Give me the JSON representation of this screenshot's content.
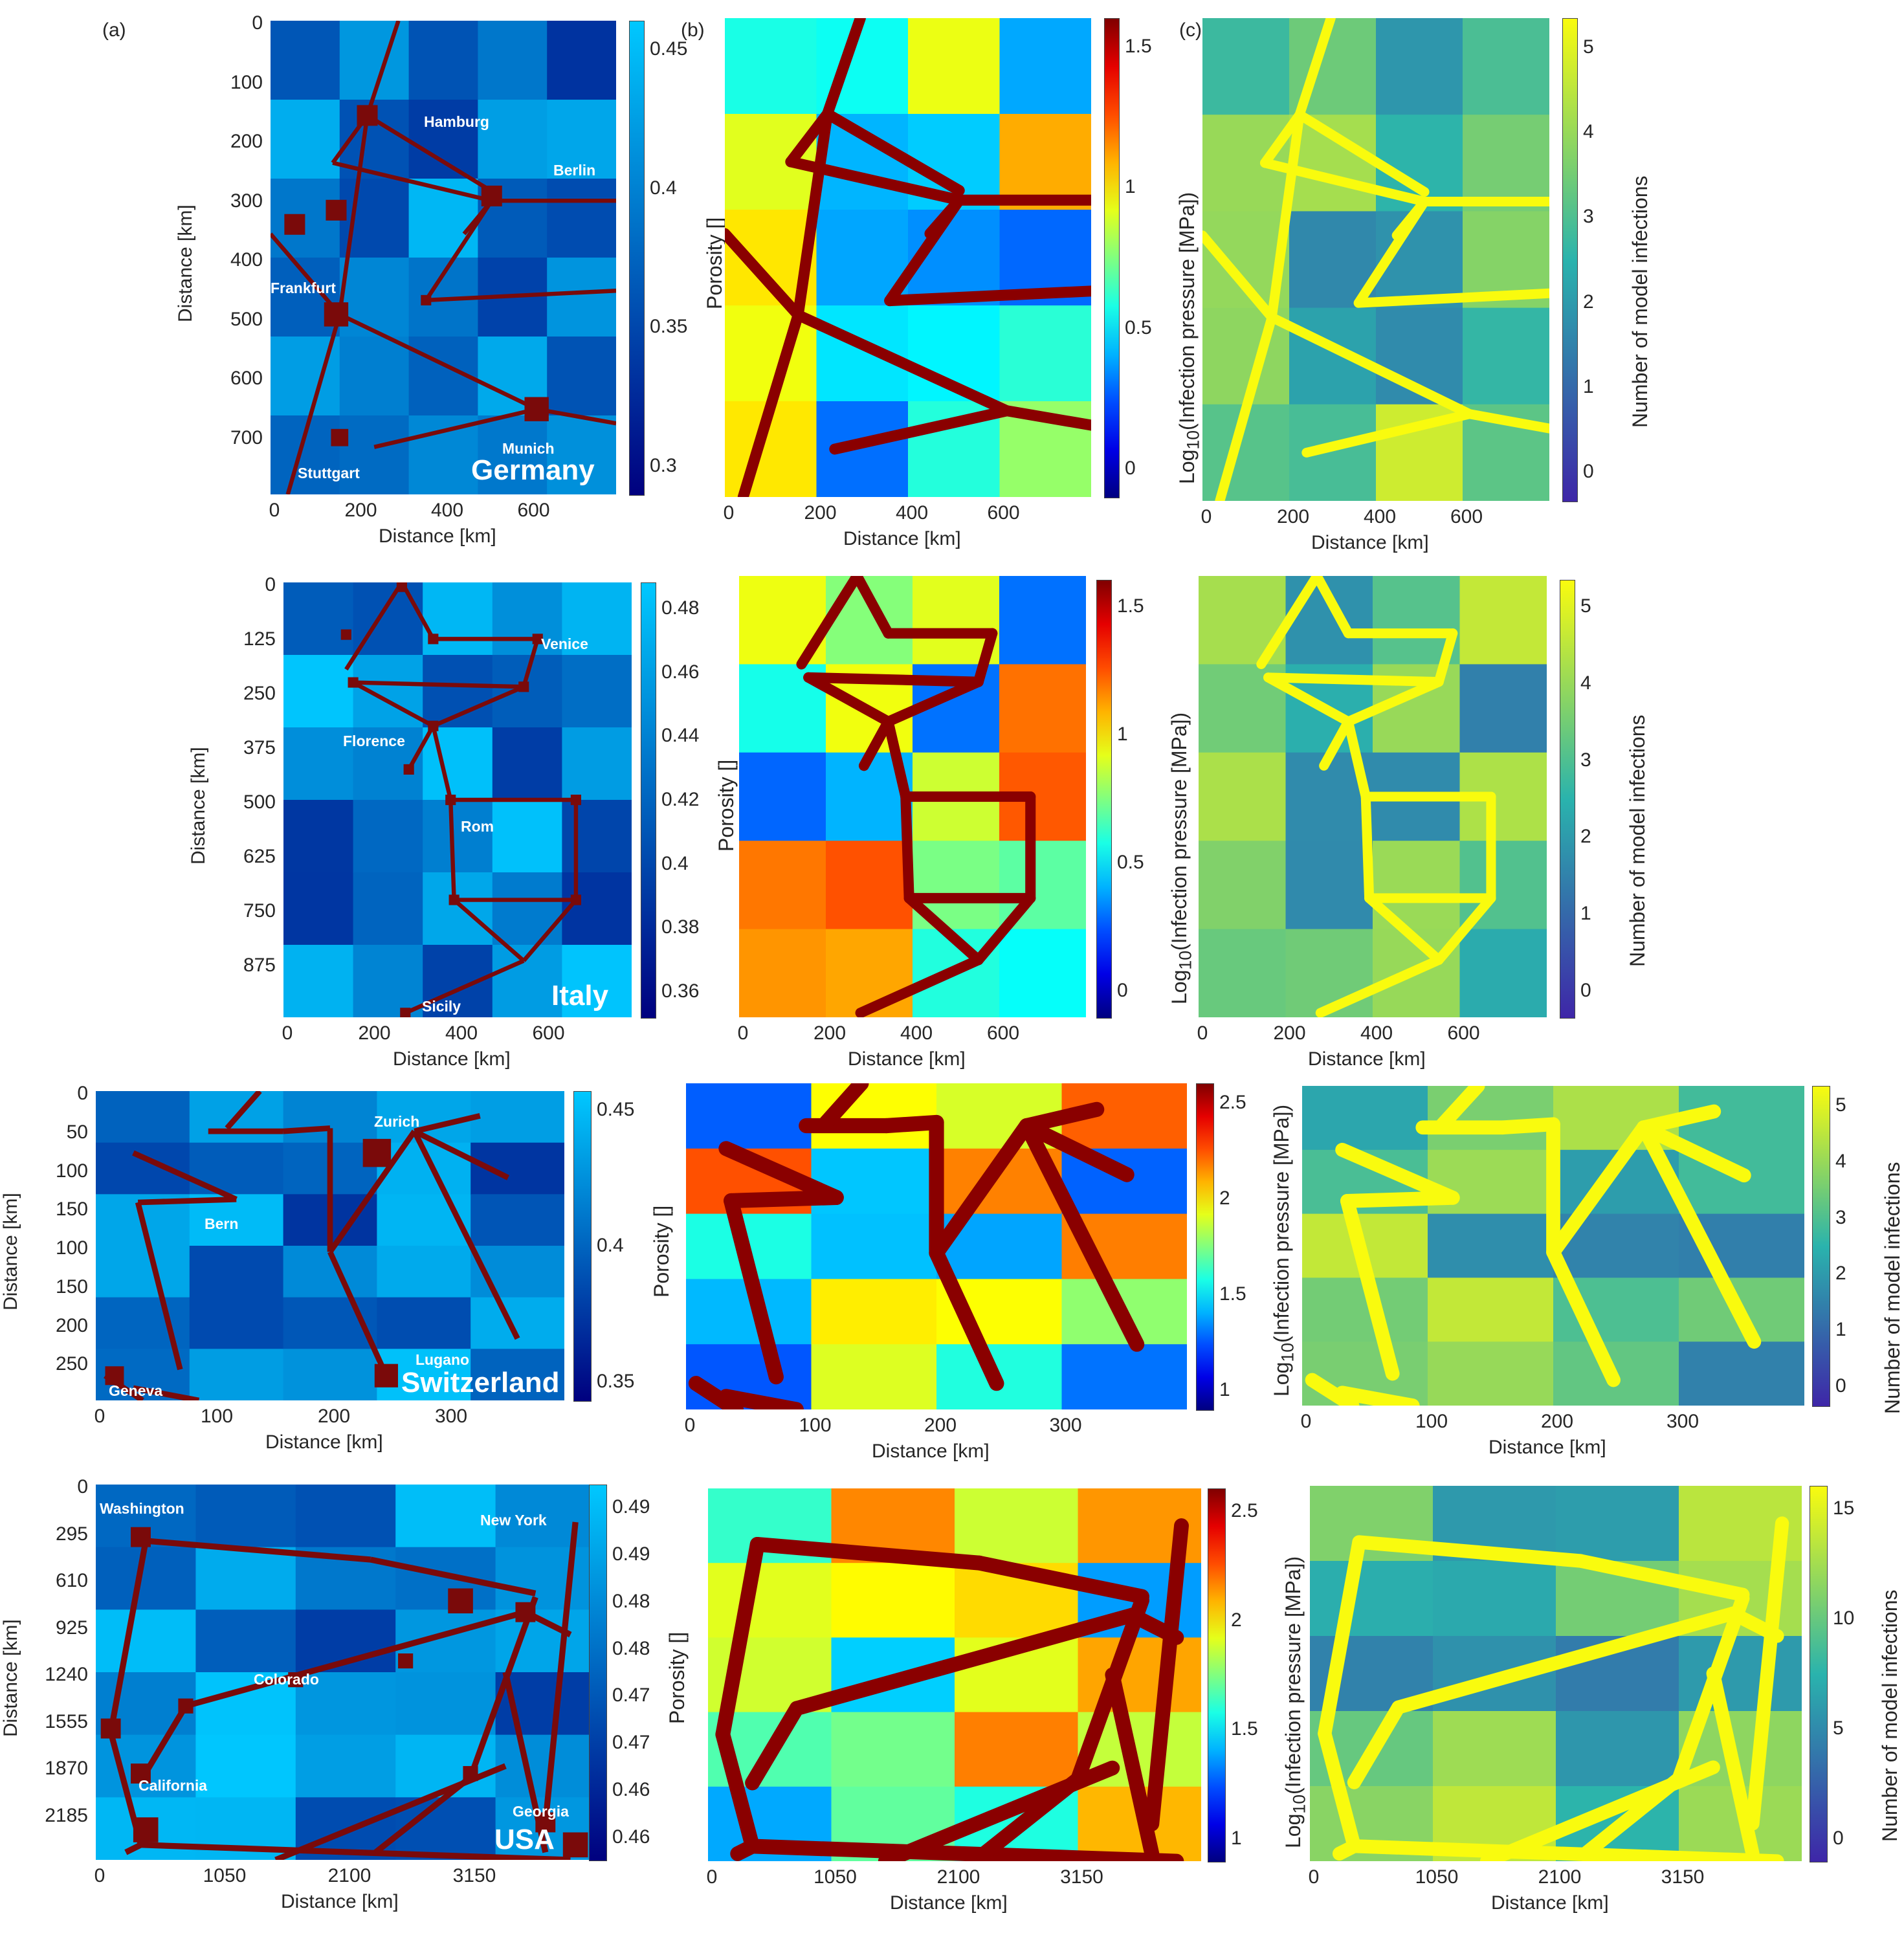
{
  "panel_labels": {
    "a": "(a)",
    "b": "(b)",
    "c": "(c)"
  },
  "labels": {
    "distance": "Distance [km]",
    "porosity": "Porosity []",
    "log_prefix": "Log",
    "log_sub": "10",
    "log_suffix": "(Infection pressure [MPa])",
    "infections": "Number of model infections"
  },
  "colors": {
    "porosity_low": "#00007f",
    "porosity_high": "#00c8ff",
    "road": "#7a0a0a",
    "parula_low": "#3e26a8",
    "parula_mid": "#2ab3ad",
    "parula_high": "#f9fb0e"
  },
  "rows": [
    {
      "country": "Germany",
      "cities": [
        "Hamburg",
        "Berlin",
        "Frankfurt",
        "Stuttgart",
        "Munich"
      ],
      "a_xticks": [
        "0",
        "200",
        "400",
        "600"
      ],
      "a_yticks": [
        "0",
        "100",
        "200",
        "300",
        "400",
        "500",
        "600",
        "700"
      ],
      "a_cbar": [
        "0.45",
        "0.4",
        "0.35",
        "0.3"
      ],
      "b_xticks": [
        "0",
        "200",
        "400",
        "600"
      ],
      "b_cbar": [
        "1.5",
        "1",
        "0.5",
        "0"
      ],
      "c_xticks": [
        "0",
        "200",
        "400",
        "600"
      ],
      "c_cbar": [
        "5",
        "4",
        "3",
        "2",
        "1",
        "0"
      ]
    },
    {
      "country": "Italy",
      "cities": [
        "Venice",
        "Florence",
        "Rom",
        "Sicily"
      ],
      "a_xticks": [
        "0",
        "200",
        "400",
        "600"
      ],
      "a_yticks": [
        "0",
        "125",
        "250",
        "375",
        "500",
        "625",
        "750",
        "875"
      ],
      "a_cbar": [
        "0.48",
        "0.46",
        "0.44",
        "0.42",
        "0.4",
        "0.38",
        "0.36"
      ],
      "b_xticks": [
        "0",
        "200",
        "400",
        "600"
      ],
      "b_cbar": [
        "1.5",
        "1",
        "0.5",
        "0"
      ],
      "c_xticks": [
        "0",
        "200",
        "400",
        "600"
      ],
      "c_cbar": [
        "5",
        "4",
        "3",
        "2",
        "1",
        "0"
      ]
    },
    {
      "country": "Switzerland",
      "cities": [
        "Zurich",
        "Bern",
        "Lugano",
        "Geneva"
      ],
      "a_xticks": [
        "0",
        "100",
        "200",
        "300"
      ],
      "a_yticks": [
        "0",
        "50",
        "100",
        "150",
        "100",
        "150",
        "200",
        "250"
      ],
      "a_cbar": [
        "0.45",
        "0.4",
        "0.35"
      ],
      "b_xticks": [
        "0",
        "100",
        "200",
        "300"
      ],
      "b_cbar": [
        "2.5",
        "2",
        "1.5",
        "1"
      ],
      "c_xticks": [
        "0",
        "100",
        "200",
        "300"
      ],
      "c_cbar": [
        "5",
        "4",
        "3",
        "2",
        "1",
        "0"
      ]
    },
    {
      "country": "USA",
      "cities": [
        "Washington",
        "New York",
        "Colorado",
        "California",
        "Georgia"
      ],
      "a_xticks": [
        "0",
        "1050",
        "2100",
        "3150"
      ],
      "a_yticks": [
        "0",
        "295",
        "610",
        "925",
        "1240",
        "1555",
        "1870",
        "2185"
      ],
      "a_cbar": [
        "0.49",
        "0.49",
        "0.48",
        "0.48",
        "0.47",
        "0.47",
        "0.46",
        "0.46"
      ],
      "b_xticks": [
        "0",
        "1050",
        "2100",
        "3150"
      ],
      "b_cbar": [
        "2.5",
        "2",
        "1.5",
        "1"
      ],
      "c_xticks": [
        "0",
        "1050",
        "2100",
        "3150"
      ],
      "c_cbar": [
        "15",
        "10",
        "5",
        "0"
      ]
    }
  ]
}
